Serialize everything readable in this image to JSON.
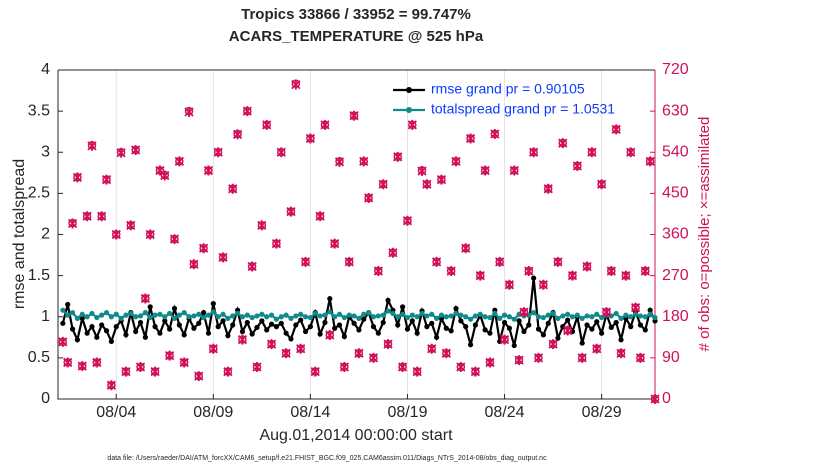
{
  "chart_data": {
    "type": "line",
    "title": "Tropics 33866 / 33952 = 99.747%",
    "subtitle": "ACARS_TEMPERATURE @ 525 hPa",
    "ylabel": "rmse and totalspread",
    "y2label": "# of obs: o=possible; ×=assimilated",
    "xlabel": "Aug.01,2014 00:00:00 start",
    "note": "data file: /Users/raeder/DAI/ATM_forcXX/CAM6_setup/f.e21.FHIST_BGC.f09_025.CAM6assim.011/Diags_NTrS_2014-08/obs_diag_output.nc",
    "xlim": [
      0,
      30.75
    ],
    "xticks": [
      {
        "value": 3,
        "label": "08/04"
      },
      {
        "value": 8,
        "label": "08/09"
      },
      {
        "value": 13,
        "label": "08/14"
      },
      {
        "value": 18,
        "label": "08/19"
      },
      {
        "value": 23,
        "label": "08/24"
      },
      {
        "value": 28,
        "label": "08/29"
      }
    ],
    "ylim": [
      0,
      4
    ],
    "yticks": [
      0,
      0.5,
      1,
      1.5,
      2,
      2.5,
      3,
      3.5,
      4
    ],
    "y2lim": [
      0,
      720
    ],
    "y2ticks": [
      0,
      90,
      180,
      270,
      360,
      450,
      540,
      630,
      720
    ],
    "xgrid": true,
    "legend": "upper right",
    "x": [
      0.25,
      0.5,
      0.75,
      1,
      1.25,
      1.5,
      1.75,
      2,
      2.25,
      2.5,
      2.75,
      3,
      3.25,
      3.5,
      3.75,
      4,
      4.25,
      4.5,
      4.75,
      5,
      5.25,
      5.5,
      5.75,
      6,
      6.25,
      6.5,
      6.75,
      7,
      7.25,
      7.5,
      7.75,
      8,
      8.25,
      8.5,
      8.75,
      9,
      9.25,
      9.5,
      9.75,
      10,
      10.25,
      10.5,
      10.75,
      11,
      11.25,
      11.5,
      11.75,
      12,
      12.25,
      12.5,
      12.75,
      13,
      13.25,
      13.5,
      13.75,
      14,
      14.25,
      14.5,
      14.75,
      15,
      15.25,
      15.5,
      15.75,
      16,
      16.25,
      16.5,
      16.75,
      17,
      17.25,
      17.5,
      17.75,
      18,
      18.25,
      18.5,
      18.75,
      19,
      19.25,
      19.5,
      19.75,
      20,
      20.25,
      20.5,
      20.75,
      21,
      21.25,
      21.5,
      21.75,
      22,
      22.25,
      22.5,
      22.75,
      23,
      23.25,
      23.5,
      23.75,
      24,
      24.25,
      24.5,
      24.75,
      25,
      25.25,
      25.5,
      25.75,
      26,
      26.25,
      26.5,
      26.75,
      27,
      27.25,
      27.5,
      27.75,
      28,
      28.25,
      28.5,
      28.75,
      29,
      29.25,
      29.5,
      29.75,
      30,
      30.25,
      30.5,
      30.75
    ],
    "series": [
      {
        "name": "rmse grand pr = 0.90105",
        "color": "#000000",
        "marker": "line",
        "values": [
          0.92,
          1.15,
          0.85,
          0.72,
          0.98,
          0.8,
          0.88,
          0.75,
          0.9,
          0.83,
          0.7,
          0.88,
          0.95,
          0.78,
          1.05,
          0.82,
          0.93,
          0.75,
          1.12,
          0.88,
          0.8,
          0.95,
          0.85,
          1.1,
          0.9,
          0.78,
          0.98,
          0.86,
          0.92,
          1.05,
          0.8,
          1.16,
          0.88,
          0.95,
          0.77,
          0.9,
          1.08,
          0.82,
          0.93,
          0.79,
          0.87,
          0.95,
          0.84,
          0.91,
          0.88,
          0.92,
          0.8,
          0.73,
          0.9,
          0.96,
          0.82,
          0.88,
          1.05,
          0.79,
          0.93,
          1.22,
          0.86,
          0.9,
          0.76,
          1.0,
          0.92,
          0.84,
          0.97,
          1.05,
          0.88,
          0.8,
          0.93,
          1.2,
          1.08,
          0.9,
          1.12,
          0.85,
          0.95,
          0.8,
          1.07,
          0.88,
          0.92,
          0.75,
          0.98,
          0.86,
          0.83,
          1.1,
          0.95,
          0.88,
          0.66,
          0.9,
          1.02,
          0.84,
          0.8,
          1.08,
          0.7,
          0.93,
          0.86,
          0.65,
          0.95,
          0.82,
          0.9,
          1.47,
          0.85,
          0.78,
          0.92,
          1.05,
          0.74,
          0.88,
          0.96,
          0.82,
          1.0,
          0.68,
          0.9,
          0.85,
          0.94,
          0.8,
          1.03,
          0.87,
          0.93,
          0.72,
          0.98,
          0.88,
          1.06,
          0.9,
          0.84,
          1.08,
          0.95
        ]
      },
      {
        "name": "totalspread grand pr = 1.0531",
        "color": "#108a8a",
        "marker": "line",
        "values": [
          1.08,
          1.02,
          1.05,
          0.98,
          1.03,
          1.0,
          1.04,
          0.99,
          1.02,
          1.05,
          1.0,
          1.03,
          0.98,
          1.02,
          1.04,
          1.0,
          1.01,
          1.05,
          0.99,
          1.02,
          1.03,
          1.0,
          1.04,
          0.98,
          1.02,
          1.05,
          1.0,
          1.01,
          1.03,
          0.99,
          1.02,
          1.06,
          1.0,
          1.03,
          0.98,
          1.01,
          1.04,
          1.0,
          1.02,
          0.99,
          1.01,
          1.03,
          1.0,
          1.02,
          0.97,
          1.0,
          1.02,
          0.98,
          1.01,
          1.03,
          1.0,
          0.99,
          1.04,
          1.01,
          1.02,
          1.06,
          1.0,
          1.03,
          0.99,
          1.02,
          1.01,
          0.98,
          1.03,
          1.05,
          1.0,
          1.01,
          1.02,
          1.07,
          1.04,
          1.0,
          1.03,
          0.99,
          1.02,
          1.0,
          1.04,
          1.01,
          1.03,
          0.98,
          1.02,
          1.0,
          1.01,
          1.04,
          1.02,
          1.0,
          0.97,
          1.01,
          1.03,
          1.0,
          0.99,
          1.04,
          0.98,
          1.02,
          1.0,
          0.97,
          1.03,
          1.01,
          1.02,
          1.05,
          1.0,
          0.99,
          1.02,
          1.04,
          0.98,
          1.01,
          1.03,
          1.0,
          1.02,
          0.98,
          1.01,
          1.0,
          1.03,
          0.99,
          1.02,
          1.01,
          1.04,
          0.98,
          1.02,
          1.0,
          1.03,
          1.01,
          1.0,
          1.03,
          0.99
        ]
      },
      {
        "color": "#d0105a",
        "marker": "o",
        "axis": "y2",
        "values": [
          125,
          80,
          385,
          485,
          72,
          400,
          555,
          80,
          400,
          480,
          30,
          360,
          540,
          60,
          380,
          545,
          70,
          220,
          360,
          60,
          500,
          490,
          95,
          350,
          520,
          80,
          630,
          295,
          50,
          330,
          500,
          110,
          540,
          310,
          60,
          460,
          580,
          130,
          630,
          290,
          70,
          380,
          600,
          120,
          340,
          540,
          100,
          410,
          690,
          110,
          300,
          570,
          60,
          400,
          600,
          140,
          340,
          520,
          70,
          300,
          620,
          100,
          520,
          440,
          90,
          280,
          470,
          120,
          320,
          530,
          70,
          390,
          600,
          60,
          500,
          470,
          110,
          300,
          480,
          100,
          280,
          520,
          70,
          330,
          570,
          60,
          270,
          500,
          80,
          580,
          300,
          130,
          250,
          500,
          85,
          190,
          280,
          540,
          90,
          250,
          460,
          120,
          300,
          560,
          150,
          270,
          510,
          90,
          290,
          540,
          110,
          470,
          190,
          280,
          590,
          100,
          270,
          540,
          200,
          90,
          280,
          520,
          0
        ]
      },
      {
        "color": "#d0105a",
        "marker": "x",
        "axis": "y2",
        "values": [
          125,
          80,
          384,
          485,
          72,
          400,
          554,
          80,
          400,
          480,
          30,
          360,
          539,
          60,
          380,
          545,
          70,
          220,
          360,
          60,
          500,
          489,
          95,
          350,
          520,
          80,
          628,
          295,
          50,
          330,
          500,
          110,
          540,
          310,
          60,
          460,
          579,
          130,
          630,
          290,
          70,
          380,
          600,
          120,
          340,
          540,
          100,
          410,
          688,
          110,
          300,
          570,
          60,
          400,
          600,
          140,
          340,
          519,
          70,
          300,
          620,
          100,
          520,
          440,
          90,
          280,
          470,
          120,
          320,
          530,
          70,
          390,
          600,
          60,
          499,
          470,
          110,
          300,
          480,
          100,
          280,
          520,
          70,
          330,
          570,
          60,
          270,
          500,
          80,
          580,
          300,
          130,
          250,
          500,
          85,
          190,
          280,
          540,
          90,
          250,
          460,
          120,
          300,
          560,
          150,
          270,
          510,
          90,
          290,
          540,
          110,
          470,
          190,
          280,
          590,
          100,
          270,
          540,
          200,
          90,
          280,
          520,
          0
        ]
      }
    ]
  }
}
